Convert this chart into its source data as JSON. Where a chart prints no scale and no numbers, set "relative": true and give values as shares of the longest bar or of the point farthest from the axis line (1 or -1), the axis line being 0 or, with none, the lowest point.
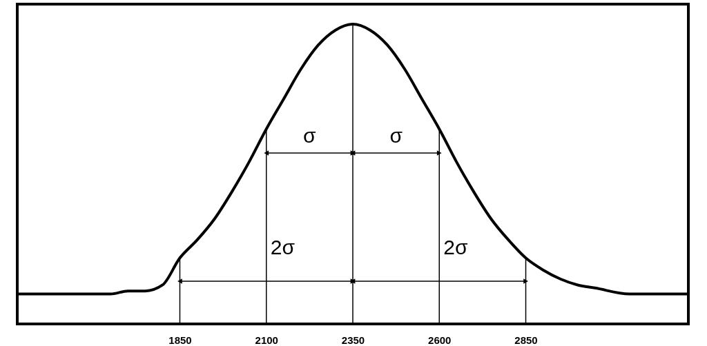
{
  "chart_data": {
    "type": "line",
    "relative": true,
    "x": [
      1380,
      1450,
      1550,
      1650,
      1700,
      1750,
      1800,
      1850,
      1900,
      1950,
      2000,
      2050,
      2100,
      2150,
      2200,
      2250,
      2300,
      2350,
      2400,
      2450,
      2500,
      2550,
      2600,
      2650,
      2700,
      2750,
      2800,
      2850,
      2900,
      2950,
      3000,
      3050,
      3150,
      3250,
      3320
    ],
    "series": [
      {
        "color": "#000000",
        "values": [
          0.1,
          0.1,
          0.1,
          0.1,
          0.11,
          0.11,
          0.13,
          0.22,
          0.28,
          0.35,
          0.44,
          0.54,
          0.65,
          0.75,
          0.85,
          0.93,
          0.98,
          1.0,
          0.98,
          0.93,
          0.85,
          0.75,
          0.65,
          0.54,
          0.44,
          0.35,
          0.28,
          0.22,
          0.18,
          0.15,
          0.13,
          0.12,
          0.1,
          0.1,
          0.1
        ]
      }
    ],
    "xlim": [
      1380,
      3320
    ],
    "xticks": [
      1850,
      2100,
      2350,
      2600,
      2850
    ],
    "ref_lines": [
      {
        "axis": "x",
        "value": 1850
      },
      {
        "axis": "x",
        "value": 2100
      },
      {
        "axis": "x",
        "value": 2350
      },
      {
        "axis": "x",
        "value": 2600
      },
      {
        "axis": "x",
        "value": 2850
      }
    ],
    "annotations": [
      "σ",
      "σ",
      "2σ",
      "2σ"
    ],
    "grid": false,
    "marker": "none",
    "line_style": "solid"
  }
}
